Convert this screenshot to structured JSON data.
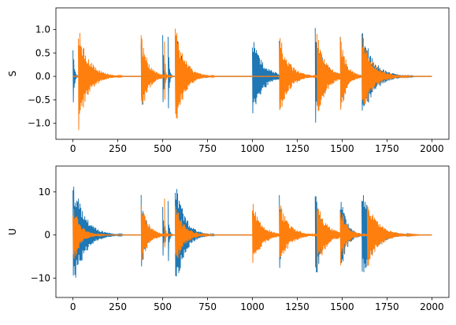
{
  "chart_data": [
    {
      "type": "line",
      "ylabel": "S",
      "xlim": [
        -95,
        2095
      ],
      "ylim": [
        -1.34,
        1.46
      ],
      "xticks": [
        0,
        250,
        500,
        750,
        1000,
        1250,
        1500,
        1750,
        2000
      ],
      "xtick_labels": [
        "0",
        "250",
        "500",
        "750",
        "1000",
        "1250",
        "1500",
        "1750",
        "2000"
      ],
      "yticks": [
        -1.0,
        -0.5,
        0.0,
        0.5,
        1.0
      ],
      "ytick_labels": [
        "−1.0",
        "−0.5",
        "0.0",
        "0.5",
        "1.0"
      ],
      "grid": false,
      "series": [
        {
          "color": "#1f77b4",
          "bursts": [
            {
              "start": 0,
              "end": 30,
              "amp": 0.88
            },
            {
              "start": 380,
              "end": 480,
              "amp": 0.86
            },
            {
              "start": 500,
              "end": 525,
              "amp": 1.05
            },
            {
              "start": 530,
              "end": 555,
              "amp": 1.05
            },
            {
              "start": 570,
              "end": 760,
              "amp": 1.05
            },
            {
              "start": 1000,
              "end": 1260,
              "amp": 0.88
            },
            {
              "start": 1150,
              "end": 1200,
              "amp": 0.8
            },
            {
              "start": 1350,
              "end": 1560,
              "amp": 1.05
            },
            {
              "start": 1490,
              "end": 1620,
              "amp": 0.86
            },
            {
              "start": 1610,
              "end": 1900,
              "amp": 1.07
            }
          ]
        },
        {
          "color": "#ff7f0e",
          "bursts": [
            {
              "start": 30,
              "end": 280,
              "amp": 1.2
            },
            {
              "start": 380,
              "end": 560,
              "amp": 0.92
            },
            {
              "start": 510,
              "end": 530,
              "amp": 0.9
            },
            {
              "start": 570,
              "end": 790,
              "amp": 1.2
            },
            {
              "start": 1150,
              "end": 1380,
              "amp": 0.97
            },
            {
              "start": 1360,
              "end": 1590,
              "amp": 0.95
            },
            {
              "start": 1490,
              "end": 1650,
              "amp": 0.88
            },
            {
              "start": 1610,
              "end": 1880,
              "amp": 0.95
            }
          ]
        }
      ]
    },
    {
      "type": "line",
      "ylabel": "U",
      "xlim": [
        -95,
        2095
      ],
      "ylim": [
        -14.5,
        16
      ],
      "xticks": [
        0,
        250,
        500,
        750,
        1000,
        1250,
        1500,
        1750,
        2000
      ],
      "xtick_labels": [
        "0",
        "250",
        "500",
        "750",
        "1000",
        "1250",
        "1500",
        "1750",
        "2000"
      ],
      "yticks": [
        -10,
        0,
        10
      ],
      "ytick_labels": [
        "−10",
        "0",
        "10"
      ],
      "grid": false,
      "series": [
        {
          "color": "#1f77b4",
          "bursts": [
            {
              "start": 0,
              "end": 280,
              "amp": 14.0
            },
            {
              "start": 380,
              "end": 500,
              "amp": 10.0
            },
            {
              "start": 500,
              "end": 525,
              "amp": 9.5
            },
            {
              "start": 530,
              "end": 555,
              "amp": 9.5
            },
            {
              "start": 570,
              "end": 790,
              "amp": 14.5
            },
            {
              "start": 1150,
              "end": 1200,
              "amp": 10.5
            },
            {
              "start": 1350,
              "end": 1500,
              "amp": 12.5
            },
            {
              "start": 1490,
              "end": 1650,
              "amp": 9.5
            },
            {
              "start": 1610,
              "end": 1900,
              "amp": 11.0
            }
          ]
        },
        {
          "color": "#ff7f0e",
          "bursts": [
            {
              "start": 0,
              "end": 180,
              "amp": 7.8
            },
            {
              "start": 380,
              "end": 560,
              "amp": 8.0
            },
            {
              "start": 510,
              "end": 530,
              "amp": 8.5
            },
            {
              "start": 570,
              "end": 780,
              "amp": 8.0
            },
            {
              "start": 1000,
              "end": 1230,
              "amp": 8.0
            },
            {
              "start": 1150,
              "end": 1390,
              "amp": 8.2
            },
            {
              "start": 1360,
              "end": 1610,
              "amp": 8.0
            },
            {
              "start": 1490,
              "end": 1660,
              "amp": 7.5
            },
            {
              "start": 1640,
              "end": 1930,
              "amp": 8.0
            }
          ]
        }
      ]
    }
  ]
}
